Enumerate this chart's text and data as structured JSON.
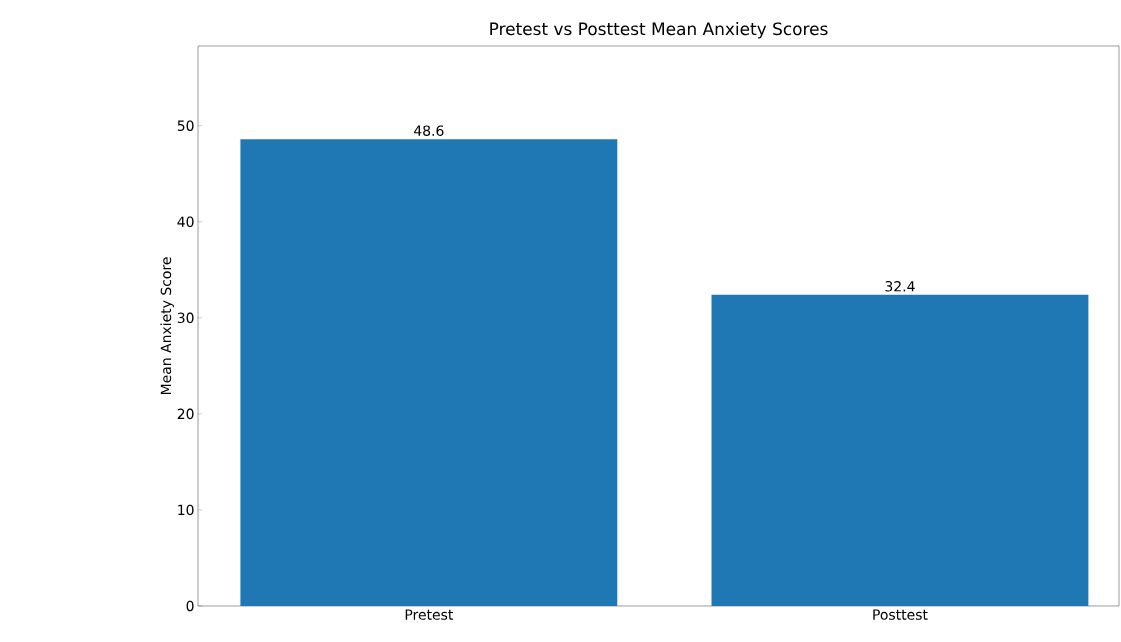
{
  "chart_data": {
    "type": "bar",
    "title": "Pretest vs Posttest Mean Anxiety Scores",
    "ylabel": "Mean Anxiety Score",
    "categories": [
      "Pretest",
      "Posttest"
    ],
    "values": [
      48.6,
      32.4
    ],
    "color": "#1f77b4",
    "ylim": [
      0,
      58.3
    ],
    "yticks": [
      0,
      10,
      20,
      30,
      40,
      50
    ],
    "data_labels": true,
    "grid": false
  }
}
